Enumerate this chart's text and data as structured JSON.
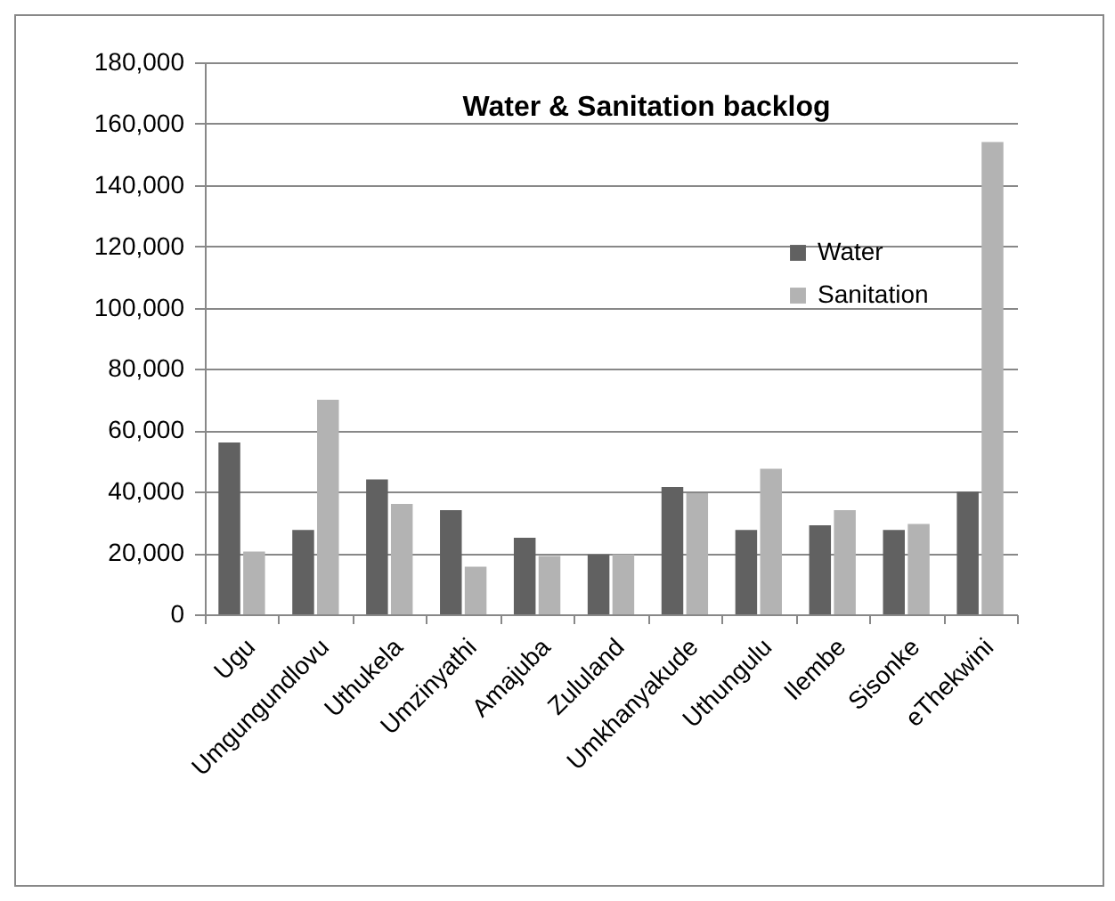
{
  "chart_data": {
    "type": "bar",
    "title": "Water & Sanitation backlog",
    "categories": [
      "Ugu",
      "Umgungundlovu",
      "Uthukela",
      "Umzinyathi",
      "Amajuba",
      "Zululand",
      "Umkhanyakude",
      "Uthungulu",
      "Ilembe",
      "Sisonke",
      "eThekwini"
    ],
    "series": [
      {
        "name": "Water",
        "color": "#616161",
        "values": [
          56000,
          27500,
          44000,
          34000,
          25000,
          19500,
          41500,
          27500,
          29000,
          27500,
          40000
        ]
      },
      {
        "name": "Sanitation",
        "color": "#b3b3b3",
        "values": [
          20500,
          70000,
          36000,
          15500,
          19000,
          19500,
          39500,
          47500,
          34000,
          29500,
          154000
        ]
      }
    ],
    "ylim": [
      0,
      180000
    ],
    "yticks": [
      0,
      {
        "value": 20000,
        "label": "20,000"
      },
      {
        "value": 40000,
        "label": "40,000"
      },
      {
        "value": 60000,
        "label": "60,000"
      },
      {
        "value": 80000,
        "label": "80,000"
      },
      {
        "value": 100000,
        "label": "100,000"
      },
      {
        "value": 120000,
        "label": "120,000"
      },
      {
        "value": 140000,
        "label": "140,000"
      },
      {
        "value": 160000,
        "label": "160,000"
      },
      {
        "value": 180000,
        "label": "180,000"
      }
    ],
    "grid": "y",
    "legend": "top right"
  }
}
